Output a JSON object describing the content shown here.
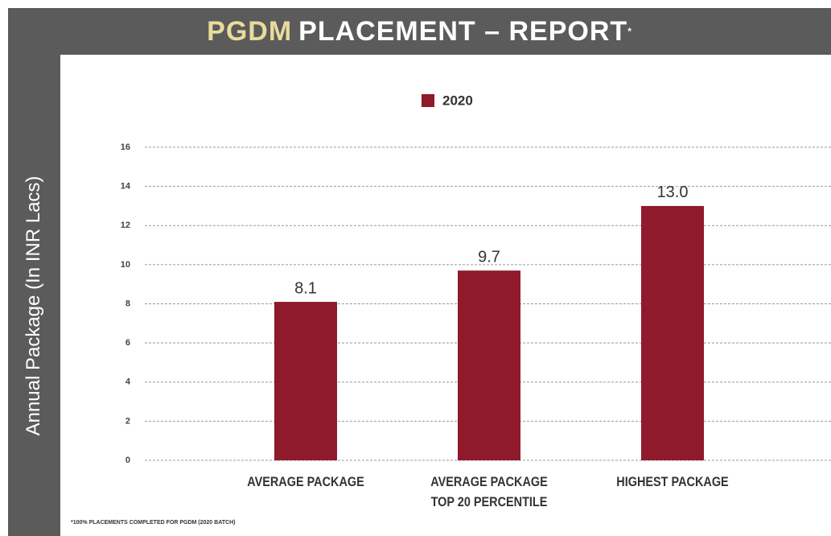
{
  "chart_data": {
    "type": "bar",
    "title_highlight": "PGDM",
    "title": "PLACEMENT – REPORT",
    "title_mark": "*",
    "y_label": "Annual Package (In INR Lacs)",
    "categories": [
      "AVERAGE PACKAGE",
      "AVERAGE PACKAGE\nTOP 20 PERCENTILE",
      "HIGHEST PACKAGE"
    ],
    "series": [
      {
        "name": "2020",
        "color": "#8e1a2b",
        "values": [
          8.1,
          9.7,
          13
        ],
        "value_labels": [
          "8.1",
          "9.7",
          "13.0"
        ]
      }
    ],
    "ylim": [
      0,
      16
    ],
    "yticks": [
      0,
      2,
      4,
      6,
      8,
      10,
      12,
      14,
      16
    ],
    "grid": true,
    "footnote": "*100% PLACEMENTS COMPLETED FOR PGDM (2020 BATCH)"
  }
}
